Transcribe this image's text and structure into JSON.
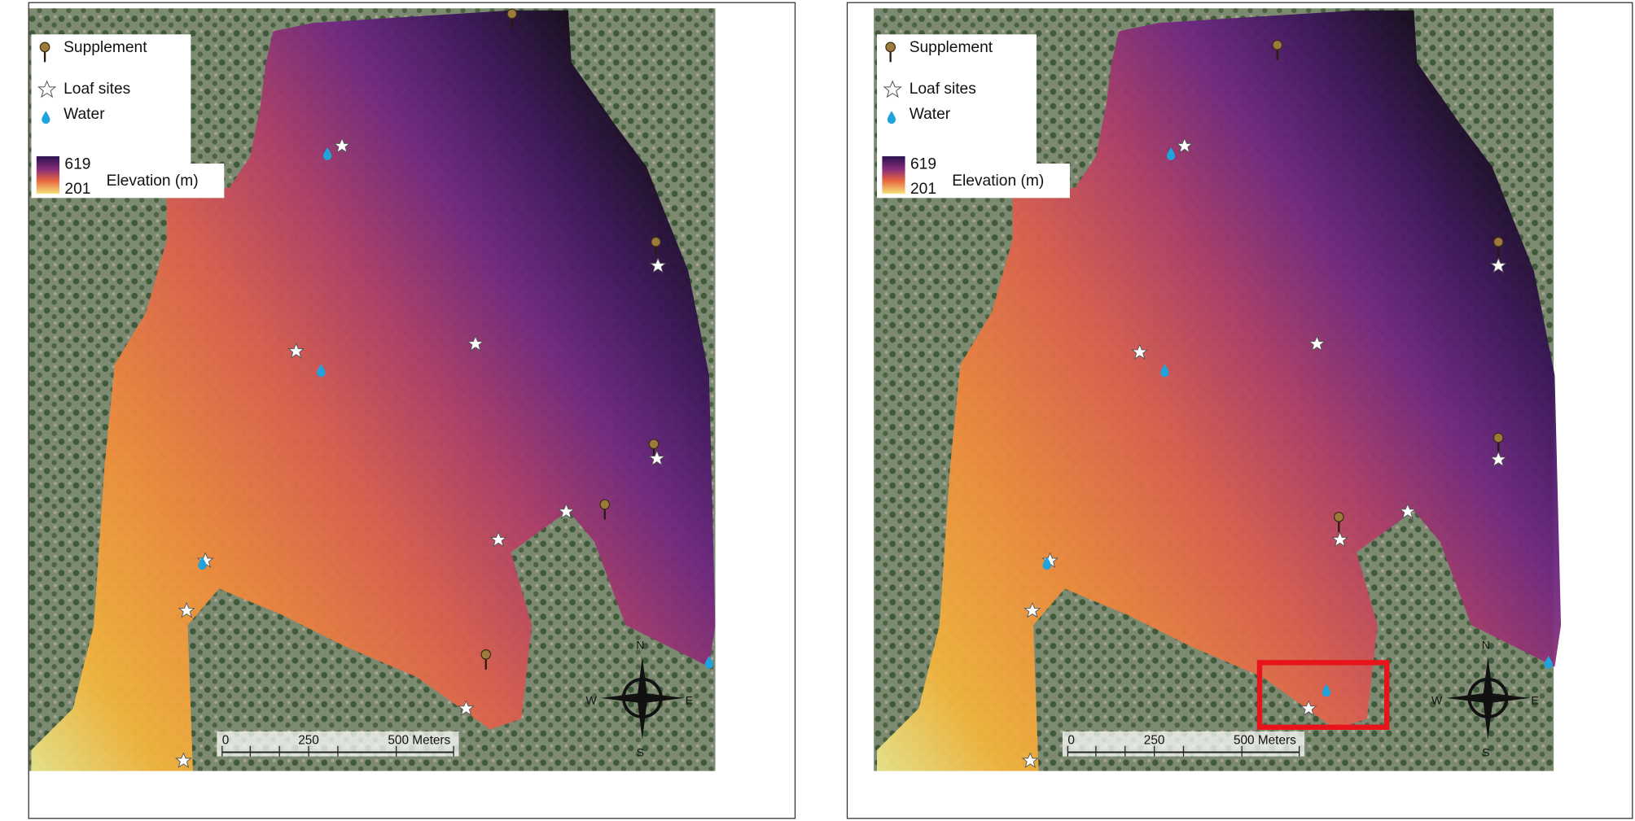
{
  "panels": [
    {
      "legend": {
        "supplement": "Supplement",
        "loaf_sites": "Loaf sites",
        "water": "Water",
        "elevation_max": 619,
        "elevation_min": 201,
        "elevation_label": "Elevation (m)"
      },
      "scale_bar": {
        "labels": [
          0,
          250,
          "500 Meters"
        ]
      },
      "compass": {
        "n": "N",
        "e": "E",
        "s": "S",
        "w": "W"
      }
    },
    {
      "legend": {
        "supplement": "Supplement",
        "loaf_sites": "Loaf sites",
        "water": "Water",
        "elevation_max": 619,
        "elevation_min": 201,
        "elevation_label": "Elevation (m)"
      },
      "scale_bar": {
        "labels": [
          0,
          250,
          "500 Meters"
        ]
      },
      "compass": {
        "n": "N",
        "e": "E",
        "s": "S",
        "w": "W"
      }
    }
  ]
}
